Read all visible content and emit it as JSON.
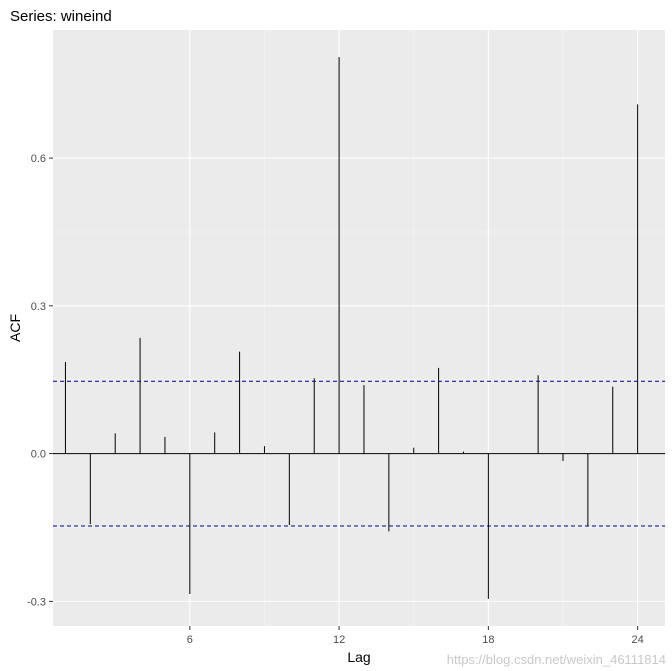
{
  "chart_data": {
    "type": "bar",
    "title": "Series: wineind",
    "xlabel": "Lag",
    "ylabel": "ACF",
    "xlim": [
      0.5,
      25.1
    ],
    "ylim": [
      -0.35,
      0.86
    ],
    "x_ticks": [
      6,
      12,
      18,
      24
    ],
    "y_ticks": [
      -0.3,
      0.0,
      0.3,
      0.6
    ],
    "y_tick_labels": [
      "-0.3",
      "0.0",
      "0.3",
      "0.6"
    ],
    "grid": true,
    "confidence_bound": 0.147,
    "lags": [
      1,
      2,
      3,
      4,
      5,
      6,
      7,
      8,
      9,
      10,
      11,
      12,
      13,
      14,
      15,
      16,
      17,
      18,
      19,
      20,
      21,
      22,
      23,
      24
    ],
    "values": [
      0.186,
      -0.143,
      0.041,
      0.235,
      0.034,
      -0.285,
      0.043,
      0.207,
      0.015,
      -0.145,
      0.153,
      0.805,
      0.139,
      -0.158,
      0.012,
      0.174,
      0.004,
      -0.295,
      0.0,
      0.159,
      -0.015,
      -0.147,
      0.136,
      0.709
    ]
  },
  "colors": {
    "panel": "#ebebeb",
    "grid_major": "#ffffff",
    "grid_minor": "#f5f5f5",
    "spike": "#000000",
    "bound": "#00008b"
  },
  "watermark": "https://blog.csdn.net/weixin_46111814"
}
